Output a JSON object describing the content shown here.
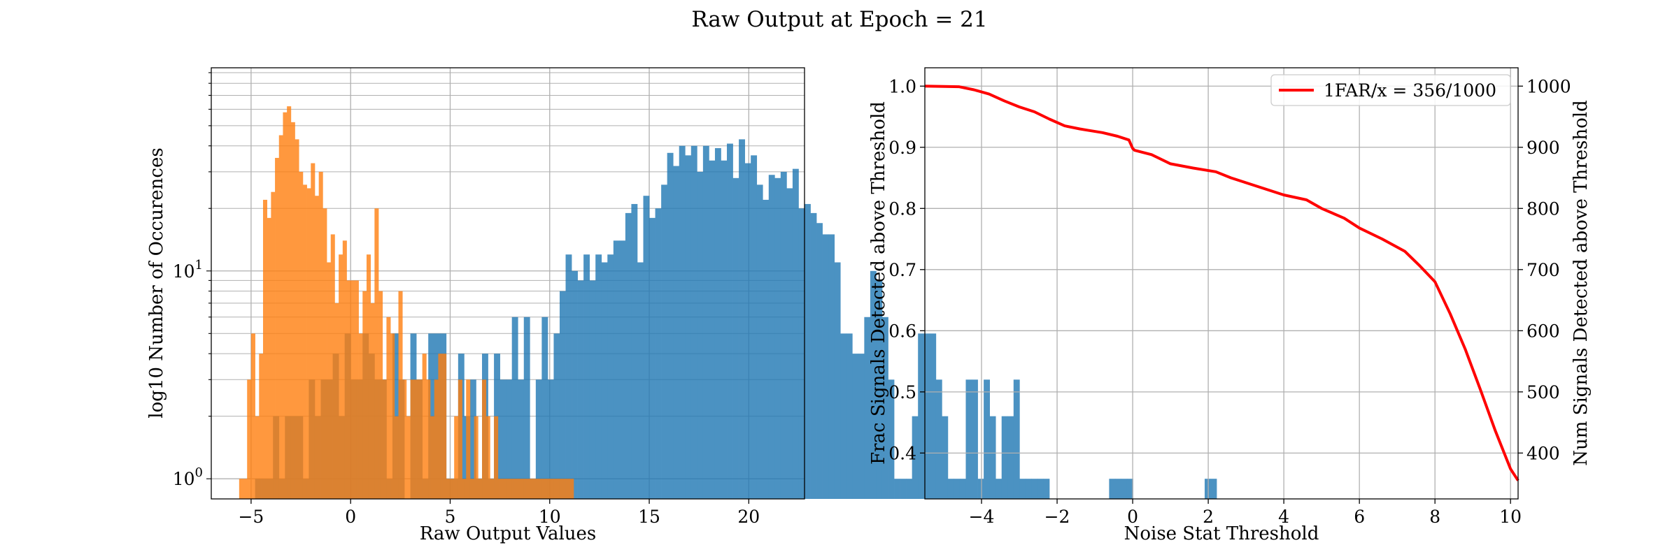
{
  "figure": {
    "title": "Raw Output at Epoch = 21"
  },
  "chart_data": [
    {
      "type": "histogram",
      "xlabel": "Raw Output Values",
      "ylabel": "log10 Number of Occurences",
      "yscale": "log",
      "xlim": [
        -7,
        22.8
      ],
      "ylim": [
        0.8,
        95
      ],
      "xticks": [
        -5,
        0,
        5,
        10,
        15,
        20
      ],
      "xtick_labels": [
        "−5",
        "0",
        "5",
        "10",
        "15",
        "20"
      ],
      "ytick_labels": [
        {
          "value": 1,
          "base": "10",
          "exp": "0"
        },
        {
          "value": 10,
          "base": "10",
          "exp": "1"
        }
      ],
      "grid": true,
      "series": [
        {
          "color": "#1f77b4",
          "alpha": 0.8,
          "bin_start": -4.8,
          "bin_width": 0.3,
          "counts": [
            1,
            1,
            1,
            2,
            1,
            2,
            2,
            2,
            1,
            3,
            2,
            3,
            3,
            4,
            2,
            5,
            3,
            3,
            5,
            4,
            3,
            3,
            1,
            5,
            3,
            0,
            5,
            3,
            1,
            5,
            5,
            5,
            1,
            1,
            4,
            2,
            3,
            1,
            4,
            1,
            4,
            3,
            3,
            6,
            3,
            6,
            1,
            3,
            6,
            3,
            5,
            8,
            12,
            10,
            9,
            12,
            9,
            12,
            11,
            12,
            14,
            14,
            19,
            21,
            11,
            23,
            18,
            20,
            26,
            37,
            32,
            40,
            36,
            40,
            30,
            40,
            34,
            39,
            34,
            41,
            28,
            43,
            33,
            36,
            26,
            22,
            29,
            28,
            30,
            25,
            31,
            20,
            21,
            19,
            17,
            15,
            15,
            11,
            5,
            5,
            4,
            4,
            6,
            10,
            9,
            6,
            3,
            1,
            1,
            1,
            2,
            5,
            5,
            5,
            3,
            2,
            1,
            1,
            1,
            3,
            3,
            1,
            3,
            2,
            1,
            2,
            2,
            3,
            1,
            1,
            1,
            1,
            1,
            0,
            0,
            0,
            0,
            0,
            0,
            0,
            0,
            0,
            0,
            1,
            1,
            1,
            1,
            0,
            0,
            0,
            0,
            0,
            0,
            0,
            0,
            0,
            0,
            0,
            0,
            1,
            1
          ]
        },
        {
          "color": "#ff7f0e",
          "alpha": 0.8,
          "bin_start": -5.6,
          "bin_width": 0.2,
          "counts": [
            1,
            1,
            3,
            5,
            2,
            4,
            22,
            18,
            24,
            35,
            45,
            58,
            62,
            52,
            43,
            30,
            26,
            25,
            33,
            23,
            30,
            20,
            11,
            15,
            7,
            12,
            14,
            9,
            9,
            9,
            5,
            8,
            12,
            7,
            20,
            8,
            3,
            6,
            5,
            2,
            8,
            3,
            2,
            3,
            3,
            3,
            4,
            3,
            2,
            3,
            4,
            4,
            1,
            1,
            2,
            3,
            1,
            3,
            1,
            2,
            1,
            3,
            2,
            1,
            2,
            1,
            1,
            1,
            1,
            1,
            1,
            1,
            1,
            1,
            1,
            1,
            1,
            1,
            1,
            1,
            1,
            1,
            1,
            1
          ]
        }
      ]
    },
    {
      "type": "line",
      "xlabel": "Noise Stat Threshold",
      "ylabel": "Frac Signals Detected above Threshold",
      "ylabel_right": "Num Signals Detected above Threshold",
      "xlim": [
        -5.5,
        10.2
      ],
      "ylim": [
        0.325,
        1.03
      ],
      "ylim_right": [
        325,
        1030
      ],
      "xticks": [
        -4,
        -2,
        0,
        2,
        4,
        6,
        8,
        10
      ],
      "xtick_labels": [
        "−4",
        "−2",
        "0",
        "2",
        "4",
        "6",
        "8",
        "10"
      ],
      "yticks": [
        0.4,
        0.5,
        0.6,
        0.7,
        0.8,
        0.9,
        1.0
      ],
      "ytick_labels": [
        "0.4",
        "0.5",
        "0.6",
        "0.7",
        "0.8",
        "0.9",
        "1.0"
      ],
      "yticks_right": [
        400,
        500,
        600,
        700,
        800,
        900,
        1000
      ],
      "ytick_labels_right": [
        "400",
        "500",
        "600",
        "700",
        "800",
        "900",
        "1000"
      ],
      "grid": true,
      "legend_position": "top-right",
      "series": [
        {
          "name": "1FAR/x = 356/1000",
          "color": "#ff0000",
          "x": [
            -5.5,
            -4.6,
            -4.2,
            -3.8,
            -3.4,
            -3.0,
            -2.6,
            -2.2,
            -1.8,
            -1.4,
            -1.2,
            -0.8,
            -0.4,
            -0.1,
            0.0,
            0.05,
            0.5,
            1.0,
            1.6,
            2.2,
            2.6,
            3.0,
            3.6,
            4.0,
            4.6,
            5.0,
            5.6,
            6.0,
            6.6,
            7.2,
            7.6,
            8.0,
            8.4,
            8.8,
            9.2,
            9.6,
            10.0,
            10.2
          ],
          "y": [
            1.0,
            0.999,
            0.994,
            0.987,
            0.976,
            0.966,
            0.958,
            0.946,
            0.935,
            0.93,
            0.928,
            0.924,
            0.918,
            0.912,
            0.898,
            0.895,
            0.888,
            0.873,
            0.866,
            0.86,
            0.85,
            0.842,
            0.83,
            0.822,
            0.814,
            0.8,
            0.784,
            0.768,
            0.75,
            0.73,
            0.706,
            0.68,
            0.628,
            0.57,
            0.504,
            0.436,
            0.374,
            0.355
          ]
        }
      ]
    }
  ]
}
